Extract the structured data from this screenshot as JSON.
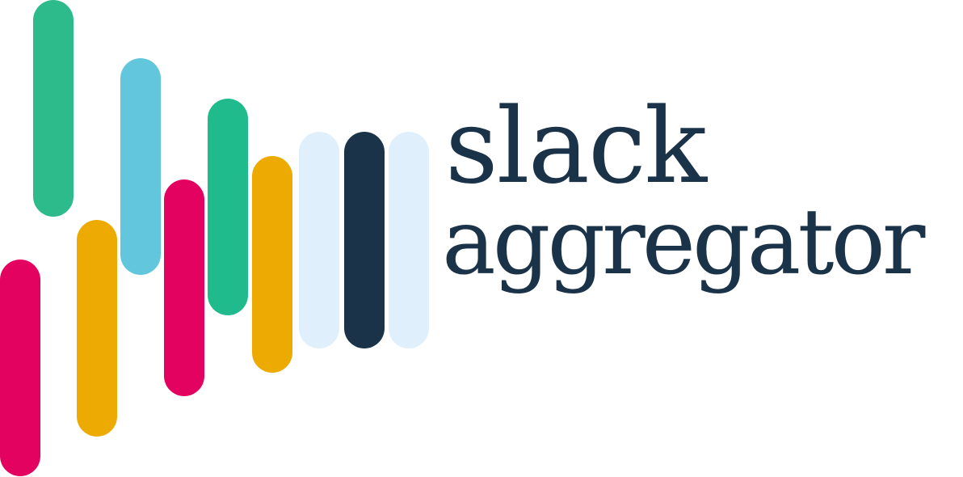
{
  "logo": {
    "line1": "slack",
    "line2": "aggregator",
    "text_color": "#1a3349",
    "bars": [
      {
        "name": "bar-1",
        "color": "#e3025f"
      },
      {
        "name": "bar-2",
        "color": "#2ebb8c"
      },
      {
        "name": "bar-3",
        "color": "#ecaa02"
      },
      {
        "name": "bar-4",
        "color": "#62c6dc"
      },
      {
        "name": "bar-5",
        "color": "#e3025f"
      },
      {
        "name": "bar-6",
        "color": "#1fbb8d"
      },
      {
        "name": "bar-7",
        "color": "#ecaa02"
      },
      {
        "name": "bar-8",
        "color": "#e0effc"
      },
      {
        "name": "bar-9",
        "color": "#1a3349"
      },
      {
        "name": "bar-10",
        "color": "#e0effc"
      }
    ]
  }
}
